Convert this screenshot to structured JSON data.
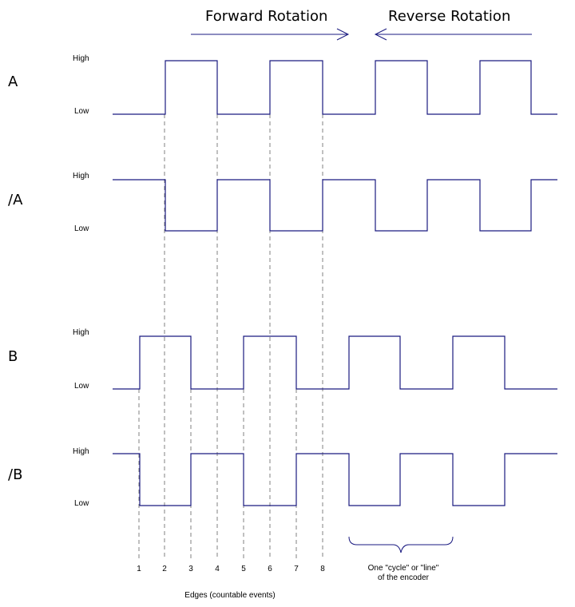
{
  "header": {
    "forward_label": "Forward Rotation",
    "reverse_label": "Reverse Rotation"
  },
  "channels": [
    {
      "name": "A",
      "high_label": "High",
      "low_label": "Low"
    },
    {
      "name": "/A",
      "high_label": "High",
      "low_label": "Low"
    },
    {
      "name": "B",
      "high_label": "High",
      "low_label": "Low"
    },
    {
      "name": "/B",
      "high_label": "High",
      "low_label": "Low"
    }
  ],
  "edges": {
    "numbers": [
      "1",
      "2",
      "3",
      "4",
      "5",
      "6",
      "7",
      "8"
    ],
    "caption": "Edges (countable events)"
  },
  "cycle_note": {
    "line1": "One \"cycle\" or \"line\"",
    "line2": "of the encoder"
  },
  "colors": {
    "signal": "#1a1a80",
    "dashed": "#808080",
    "text": "#000000"
  }
}
